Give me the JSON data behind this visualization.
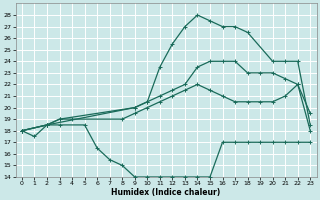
{
  "xlabel": "Humidex (Indice chaleur)",
  "bg_color": "#cce8e8",
  "grid_color": "#ffffff",
  "line_color": "#1a6b5a",
  "xlim": [
    -0.5,
    23.5
  ],
  "ylim": [
    14,
    29
  ],
  "xticks": [
    0,
    1,
    2,
    3,
    4,
    5,
    6,
    7,
    8,
    9,
    10,
    11,
    12,
    13,
    14,
    15,
    16,
    17,
    18,
    19,
    20,
    21,
    22,
    23
  ],
  "yticks": [
    14,
    15,
    16,
    17,
    18,
    19,
    20,
    21,
    22,
    23,
    24,
    25,
    26,
    27,
    28
  ],
  "line1_x": [
    0,
    1,
    2,
    3,
    5,
    6,
    7,
    8,
    9,
    10,
    11,
    12,
    13,
    14,
    15,
    16,
    17,
    18,
    19,
    20,
    21,
    22,
    23
  ],
  "line1_y": [
    18,
    17.5,
    18.5,
    18.5,
    18.5,
    16.5,
    15.5,
    15,
    14,
    14,
    14,
    14,
    14,
    14,
    14,
    17,
    17,
    17,
    17,
    17,
    17,
    17,
    17
  ],
  "line2_x": [
    0,
    2,
    3,
    4,
    8,
    9,
    10,
    11,
    12,
    13,
    14,
    15,
    16,
    17,
    18,
    19,
    20,
    21,
    22,
    23
  ],
  "line2_y": [
    18,
    18.5,
    19,
    19,
    19,
    19.5,
    20,
    20.5,
    21,
    21.5,
    22,
    21.5,
    21,
    20.5,
    20.5,
    20.5,
    20.5,
    21,
    22,
    18
  ],
  "line3_x": [
    0,
    2,
    3,
    9,
    10,
    11,
    12,
    13,
    14,
    15,
    16,
    17,
    18,
    19,
    20,
    21,
    22,
    23
  ],
  "line3_y": [
    18,
    18.5,
    19,
    20,
    20.5,
    21,
    21.5,
    22,
    23.5,
    24,
    24,
    24,
    23,
    23,
    23,
    22.5,
    22,
    19.5
  ],
  "line4_x": [
    0,
    2,
    9,
    10,
    11,
    12,
    13,
    14,
    15,
    16,
    17,
    18,
    20,
    21,
    22,
    23
  ],
  "line4_y": [
    18,
    18.5,
    20,
    20.5,
    23.5,
    25.5,
    27,
    28,
    27.5,
    27,
    27,
    26.5,
    24,
    24,
    24,
    18.5
  ]
}
